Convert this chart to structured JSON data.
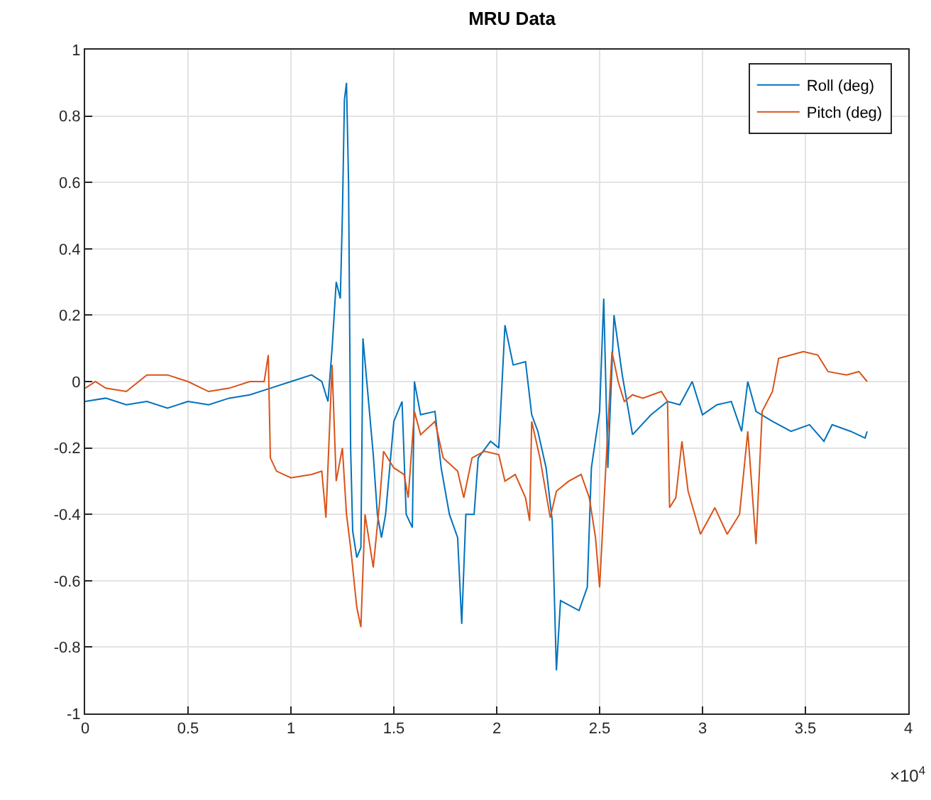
{
  "chart_data": {
    "type": "line",
    "title": "MRU Data",
    "annotations": [
      "×10$^{4}$"
    ],
    "xlim": [
      0,
      4
    ],
    "xticks": [
      0,
      0.5,
      1,
      1.5,
      2,
      2.5,
      3,
      3.5,
      4
    ],
    "ylim": [
      -1,
      1
    ],
    "yticks": [
      -1,
      -0.8,
      -0.6,
      -0.4,
      -0.2,
      0,
      0.2,
      0.4,
      0.6,
      0.8,
      1
    ],
    "grid": true,
    "legend": "top right",
    "line_style": "solid",
    "marker": "none",
    "series": [
      {
        "name": "Roll (deg)",
        "color": "#0072bd",
        "x": [
          0,
          0.1,
          0.2,
          0.3,
          0.4,
          0.5,
          0.6,
          0.7,
          0.8,
          0.9,
          1.0,
          1.1,
          1.15,
          1.18,
          1.2,
          1.22,
          1.24,
          1.25,
          1.26,
          1.27,
          1.28,
          1.29,
          1.3,
          1.32,
          1.34,
          1.35,
          1.4,
          1.42,
          1.44,
          1.46,
          1.5,
          1.54,
          1.56,
          1.59,
          1.6,
          1.63,
          1.7,
          1.73,
          1.77,
          1.81,
          1.83,
          1.85,
          1.89,
          1.91,
          1.97,
          2.01,
          2.04,
          2.08,
          2.14,
          2.17,
          2.2,
          2.24,
          2.27,
          2.29,
          2.31,
          2.4,
          2.44,
          2.46,
          2.5,
          2.52,
          2.54,
          2.57,
          2.61,
          2.66,
          2.75,
          2.83,
          2.89,
          2.95,
          3.0,
          3.07,
          3.14,
          3.19,
          3.22,
          3.26,
          3.34,
          3.43,
          3.52,
          3.59,
          3.63,
          3.72,
          3.79,
          3.8
        ],
        "values": [
          -0.06,
          -0.05,
          -0.07,
          -0.06,
          -0.08,
          -0.06,
          -0.07,
          -0.05,
          -0.04,
          -0.02,
          0.0,
          0.02,
          0.0,
          -0.06,
          0.1,
          0.3,
          0.25,
          0.5,
          0.85,
          0.9,
          0.6,
          -0.2,
          -0.45,
          -0.53,
          -0.5,
          0.13,
          -0.22,
          -0.4,
          -0.47,
          -0.4,
          -0.12,
          -0.06,
          -0.4,
          -0.44,
          0.0,
          -0.1,
          -0.09,
          -0.26,
          -0.4,
          -0.47,
          -0.73,
          -0.4,
          -0.4,
          -0.23,
          -0.18,
          -0.2,
          0.17,
          0.05,
          0.06,
          -0.1,
          -0.15,
          -0.26,
          -0.42,
          -0.87,
          -0.66,
          -0.69,
          -0.62,
          -0.26,
          -0.09,
          0.25,
          -0.26,
          0.2,
          0.02,
          -0.16,
          -0.1,
          -0.06,
          -0.07,
          0.0,
          -0.1,
          -0.07,
          -0.06,
          -0.15,
          0.0,
          -0.09,
          -0.12,
          -0.15,
          -0.13,
          -0.18,
          -0.13,
          -0.15,
          -0.17,
          -0.15
        ]
      },
      {
        "name": "Pitch (deg)",
        "color": "#d95319",
        "x": [
          0,
          0.05,
          0.1,
          0.2,
          0.3,
          0.4,
          0.5,
          0.6,
          0.7,
          0.8,
          0.87,
          0.89,
          0.9,
          0.93,
          1.0,
          1.1,
          1.15,
          1.17,
          1.2,
          1.22,
          1.25,
          1.27,
          1.29,
          1.32,
          1.34,
          1.36,
          1.4,
          1.43,
          1.45,
          1.5,
          1.55,
          1.57,
          1.6,
          1.63,
          1.7,
          1.74,
          1.81,
          1.84,
          1.88,
          1.94,
          2.01,
          2.04,
          2.09,
          2.14,
          2.16,
          2.17,
          2.21,
          2.26,
          2.29,
          2.35,
          2.41,
          2.45,
          2.48,
          2.5,
          2.53,
          2.56,
          2.59,
          2.62,
          2.66,
          2.71,
          2.8,
          2.83,
          2.84,
          2.87,
          2.9,
          2.93,
          2.99,
          3.06,
          3.12,
          3.18,
          3.22,
          3.26,
          3.29,
          3.34,
          3.37,
          3.43,
          3.49,
          3.56,
          3.61,
          3.7,
          3.76,
          3.8
        ],
        "values": [
          -0.02,
          0.0,
          -0.02,
          -0.03,
          0.02,
          0.02,
          0.0,
          -0.03,
          -0.02,
          0.0,
          0.0,
          0.08,
          -0.23,
          -0.27,
          -0.29,
          -0.28,
          -0.27,
          -0.41,
          0.05,
          -0.3,
          -0.2,
          -0.4,
          -0.5,
          -0.68,
          -0.74,
          -0.4,
          -0.56,
          -0.37,
          -0.21,
          -0.26,
          -0.28,
          -0.35,
          -0.09,
          -0.16,
          -0.12,
          -0.23,
          -0.27,
          -0.35,
          -0.23,
          -0.21,
          -0.22,
          -0.3,
          -0.28,
          -0.35,
          -0.42,
          -0.12,
          -0.23,
          -0.41,
          -0.33,
          -0.3,
          -0.28,
          -0.35,
          -0.47,
          -0.62,
          -0.26,
          0.09,
          0.0,
          -0.06,
          -0.04,
          -0.05,
          -0.03,
          -0.06,
          -0.38,
          -0.35,
          -0.18,
          -0.33,
          -0.46,
          -0.38,
          -0.46,
          -0.4,
          -0.15,
          -0.49,
          -0.09,
          -0.03,
          0.07,
          0.08,
          0.09,
          0.08,
          0.03,
          0.02,
          0.03,
          0.0
        ]
      }
    ]
  }
}
